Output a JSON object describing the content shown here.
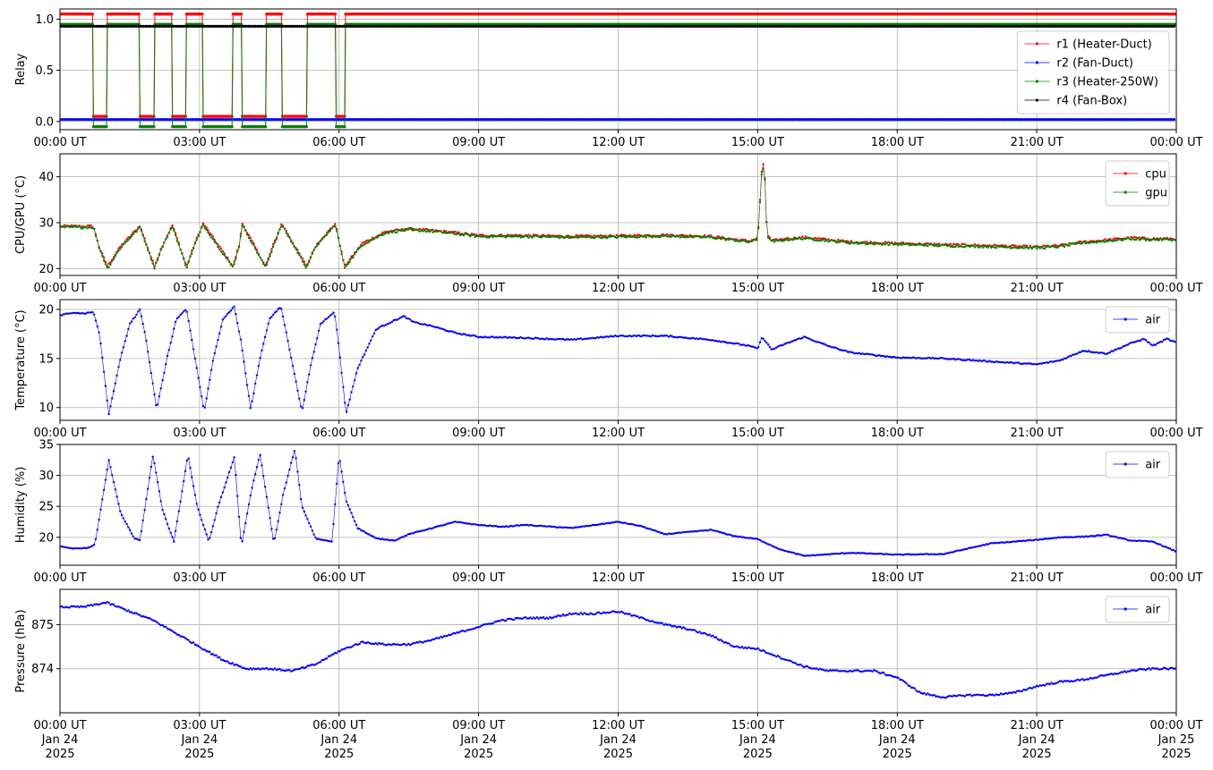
{
  "chart_data": [
    {
      "type": "line",
      "ylabel": "Relay",
      "xlim": [
        "2025-01-24T00:00Z",
        "2025-01-25T00:00Z"
      ],
      "ylim": [
        -0.08,
        1.1
      ],
      "yticks": [
        "0.0",
        "0.5",
        "1.0"
      ],
      "ytick_values": [
        0,
        0.5,
        1.0
      ],
      "xtick_labels": [
        "00:00 UT",
        "03:00 UT",
        "06:00 UT",
        "09:00 UT",
        "12:00 UT",
        "15:00 UT",
        "18:00 UT",
        "21:00 UT",
        "00:00 UT"
      ],
      "grid": true,
      "legend": "right",
      "series": [
        {
          "name": "r1 (Heater-Duct)",
          "color": "#ff0000",
          "style": "cycling-then-on",
          "on_level": 1.05,
          "off_level": 0.05,
          "cycles_hours": [
            [
              0.0,
              0.72
            ],
            [
              1.02,
              1.72
            ],
            [
              2.03,
              2.42
            ],
            [
              2.72,
              3.08
            ],
            [
              3.72,
              3.92
            ],
            [
              4.42,
              4.77
            ],
            [
              5.3,
              5.92
            ],
            [
              6.12,
              24.0
            ]
          ]
        },
        {
          "name": "r2 (Fan-Duct)",
          "color": "#0000ff",
          "style": "constant",
          "level": 0.02
        },
        {
          "name": "r3 (Heater-250W)",
          "color": "#008000",
          "style": "cycling-then-on",
          "on_level": 0.95,
          "off_level": -0.05,
          "cycles_hours": [
            [
              0.0,
              0.72
            ],
            [
              1.02,
              1.72
            ],
            [
              2.03,
              2.42
            ],
            [
              2.72,
              3.08
            ],
            [
              3.72,
              3.92
            ],
            [
              4.42,
              4.77
            ],
            [
              5.3,
              5.92
            ],
            [
              6.12,
              24.0
            ]
          ]
        },
        {
          "name": "r4 (Fan-Box)",
          "color": "#000000",
          "style": "constant",
          "level": 0.93
        }
      ]
    },
    {
      "type": "line",
      "ylabel": "CPU/GPU (°C)",
      "xlim": [
        "2025-01-24T00:00Z",
        "2025-01-25T00:00Z"
      ],
      "ylim": [
        18.5,
        45
      ],
      "yticks": [
        "20",
        "30",
        "40"
      ],
      "ytick_values": [
        20,
        30,
        40
      ],
      "xtick_labels": [
        "00:00 UT",
        "03:00 UT",
        "06:00 UT",
        "09:00 UT",
        "12:00 UT",
        "15:00 UT",
        "18:00 UT",
        "21:00 UT",
        "00:00 UT"
      ],
      "grid": true,
      "legend": "upper right",
      "series": [
        {
          "name": "cpu",
          "color": "#ff0000",
          "x_hours": [
            0,
            0.72,
            0.85,
            1.02,
            1.3,
            1.72,
            2.03,
            2.2,
            2.42,
            2.72,
            2.9,
            3.08,
            3.72,
            3.85,
            3.92,
            4.42,
            4.6,
            4.77,
            5.3,
            5.5,
            5.92,
            6.12,
            6.5,
            7.0,
            7.5,
            8.0,
            8.5,
            9.0,
            10.0,
            11.0,
            12.0,
            13.0,
            14.0,
            14.8,
            15.0,
            15.1,
            15.15,
            15.2,
            15.3,
            15.6,
            16.0,
            17.0,
            18.0,
            19.0,
            20.0,
            21.0,
            21.5,
            22.0,
            22.5,
            23.0,
            23.5,
            24.0
          ],
          "values": [
            29.2,
            29.2,
            24.5,
            20.5,
            24.8,
            29.3,
            20.5,
            25.0,
            29.5,
            20.5,
            25.5,
            29.8,
            20.5,
            25.0,
            29.8,
            20.5,
            25.5,
            29.8,
            20.5,
            25.0,
            29.8,
            20.5,
            25.5,
            28.0,
            28.6,
            28.3,
            27.8,
            27.2,
            27.2,
            27.0,
            27.1,
            27.3,
            27.0,
            26.0,
            26.5,
            43.5,
            41.0,
            27.5,
            26.0,
            26.5,
            26.8,
            25.8,
            25.5,
            25.2,
            25.0,
            24.7,
            25.0,
            25.8,
            26.2,
            26.7,
            26.5,
            26.5
          ]
        },
        {
          "name": "gpu",
          "color": "#008000",
          "x_hours": [
            0,
            0.72,
            0.85,
            1.02,
            1.3,
            1.72,
            2.03,
            2.2,
            2.42,
            2.72,
            2.9,
            3.08,
            3.72,
            3.85,
            3.92,
            4.42,
            4.6,
            4.77,
            5.3,
            5.5,
            5.92,
            6.12,
            6.5,
            7.0,
            7.5,
            8.0,
            8.5,
            9.0,
            10.0,
            11.0,
            12.0,
            13.0,
            14.0,
            14.8,
            15.0,
            15.1,
            15.15,
            15.2,
            15.3,
            15.6,
            16.0,
            17.0,
            18.0,
            19.0,
            20.0,
            21.0,
            21.5,
            22.0,
            22.5,
            23.0,
            23.5,
            24.0
          ],
          "values": [
            29.0,
            29.0,
            24.3,
            20.0,
            24.5,
            29.0,
            20.2,
            24.8,
            29.2,
            20.2,
            25.2,
            29.5,
            20.2,
            24.8,
            29.5,
            20.2,
            25.2,
            29.5,
            20.2,
            24.8,
            29.5,
            20.2,
            25.2,
            27.8,
            28.5,
            28.1,
            27.6,
            27.0,
            27.0,
            26.8,
            26.9,
            27.1,
            26.8,
            25.8,
            26.3,
            43.0,
            40.5,
            27.3,
            25.8,
            26.3,
            26.6,
            25.6,
            25.3,
            25.0,
            24.8,
            24.5,
            24.8,
            25.6,
            26.0,
            26.5,
            26.3,
            26.3
          ]
        }
      ]
    },
    {
      "type": "line",
      "ylabel": "Temperature (°C)",
      "xlim": [
        "2025-01-24T00:00Z",
        "2025-01-25T00:00Z"
      ],
      "ylim": [
        8.7,
        21
      ],
      "yticks": [
        "10",
        "15",
        "20"
      ],
      "ytick_values": [
        10,
        15,
        20
      ],
      "xtick_labels": [
        "00:00 UT",
        "03:00 UT",
        "06:00 UT",
        "09:00 UT",
        "12:00 UT",
        "15:00 UT",
        "18:00 UT",
        "21:00 UT",
        "00:00 UT"
      ],
      "grid": true,
      "legend": "upper right",
      "series": [
        {
          "name": "air",
          "color": "#0000ff",
          "x_hours": [
            0,
            0.2,
            0.5,
            0.72,
            0.85,
            1.05,
            1.3,
            1.5,
            1.72,
            1.85,
            2.08,
            2.3,
            2.5,
            2.72,
            2.85,
            3.1,
            3.3,
            3.5,
            3.75,
            3.9,
            4.1,
            4.3,
            4.5,
            4.75,
            4.9,
            5.2,
            5.4,
            5.6,
            5.9,
            6.0,
            6.15,
            6.4,
            6.8,
            7.2,
            7.4,
            7.6,
            8.0,
            8.5,
            9.0,
            10.0,
            11.0,
            12.0,
            13.0,
            14.0,
            14.8,
            15.0,
            15.1,
            15.3,
            15.6,
            16.0,
            16.5,
            17.0,
            18.0,
            19.0,
            20.0,
            21.0,
            21.5,
            22.0,
            22.5,
            23.0,
            23.3,
            23.5,
            23.8,
            24.0
          ],
          "values": [
            19.4,
            19.6,
            19.6,
            19.7,
            17.5,
            9.3,
            15.0,
            18.5,
            20.0,
            17.0,
            9.8,
            15.0,
            19.0,
            20.0,
            16.5,
            9.6,
            15.0,
            19.0,
            20.3,
            16.5,
            9.8,
            15.0,
            19.0,
            20.3,
            16.8,
            9.6,
            14.5,
            18.5,
            19.8,
            16.0,
            9.4,
            14.0,
            18.0,
            18.9,
            19.3,
            18.7,
            18.3,
            17.6,
            17.2,
            17.1,
            16.9,
            17.3,
            17.3,
            16.9,
            16.3,
            16.0,
            17.2,
            15.9,
            16.5,
            17.2,
            16.3,
            15.6,
            15.1,
            15.0,
            14.7,
            14.4,
            14.8,
            15.8,
            15.5,
            16.5,
            17.0,
            16.3,
            17.0,
            16.6
          ]
        }
      ]
    },
    {
      "type": "line",
      "ylabel": "Humidity (%)",
      "xlim": [
        "2025-01-24T00:00Z",
        "2025-01-25T00:00Z"
      ],
      "ylim": [
        15.5,
        35
      ],
      "yticks": [
        "20",
        "25",
        "30",
        "35"
      ],
      "ytick_values": [
        20,
        25,
        30,
        35
      ],
      "xtick_labels": [
        "00:00 UT",
        "03:00 UT",
        "06:00 UT",
        "09:00 UT",
        "12:00 UT",
        "15:00 UT",
        "18:00 UT",
        "21:00 UT",
        "00:00 UT"
      ],
      "grid": true,
      "legend": "upper right",
      "series": [
        {
          "name": "air",
          "color": "#0000ff",
          "x_hours": [
            0,
            0.3,
            0.6,
            0.75,
            1.05,
            1.3,
            1.6,
            1.72,
            2.0,
            2.2,
            2.45,
            2.75,
            2.95,
            3.2,
            3.4,
            3.75,
            3.9,
            4.1,
            4.3,
            4.6,
            4.8,
            5.05,
            5.2,
            5.5,
            5.85,
            6.0,
            6.15,
            6.4,
            6.8,
            7.2,
            7.5,
            8.0,
            8.5,
            9.0,
            9.5,
            10.0,
            11.0,
            12.0,
            12.5,
            13.0,
            14.0,
            14.5,
            15.0,
            15.5,
            16.0,
            17.0,
            18.0,
            19.0,
            20.0,
            21.0,
            21.5,
            22.0,
            22.5,
            23.0,
            23.5,
            24.0
          ],
          "values": [
            18.5,
            18.2,
            18.3,
            18.8,
            32.5,
            24.0,
            19.8,
            19.5,
            33.3,
            24.5,
            19.3,
            33.3,
            25.0,
            19.3,
            25.0,
            33.0,
            18.5,
            27.0,
            33.5,
            19.0,
            27.0,
            34.3,
            25.0,
            19.8,
            19.3,
            33.3,
            26.0,
            21.5,
            19.8,
            19.5,
            20.5,
            21.5,
            22.5,
            22.0,
            21.7,
            22.0,
            21.5,
            22.5,
            21.8,
            20.5,
            21.2,
            20.2,
            19.7,
            18.0,
            17.0,
            17.5,
            17.2,
            17.3,
            19.0,
            19.6,
            20.0,
            20.1,
            20.4,
            19.5,
            19.3,
            17.7
          ]
        }
      ]
    },
    {
      "type": "line",
      "ylabel": "Pressure (hPa)",
      "xlim": [
        "2025-01-24T00:00Z",
        "2025-01-25T00:00Z"
      ],
      "ylim": [
        873.0,
        875.8
      ],
      "yticks": [
        "874",
        "875"
      ],
      "ytick_values": [
        874,
        875
      ],
      "xtick_labels": [
        "00:00 UT",
        "03:00 UT",
        "06:00 UT",
        "09:00 UT",
        "12:00 UT",
        "15:00 UT",
        "18:00 UT",
        "21:00 UT",
        "00:00 UT"
      ],
      "xtick_date_labels": [
        "Jan 24",
        "Jan 24",
        "Jan 24",
        "Jan 24",
        "Jan 24",
        "Jan 24",
        "Jan 24",
        "Jan 24",
        "Jan 25"
      ],
      "xtick_year_labels": [
        "2025",
        "2025",
        "2025",
        "2025",
        "2025",
        "2025",
        "2025",
        "2025",
        "2025"
      ],
      "grid": true,
      "legend": "upper right",
      "series": [
        {
          "name": "air",
          "color": "#0000ff",
          "x_hours": [
            0,
            0.5,
            1.0,
            1.5,
            2.0,
            2.5,
            3.0,
            3.5,
            4.0,
            4.5,
            5.0,
            5.5,
            6.0,
            6.5,
            7.0,
            7.5,
            8.0,
            8.5,
            9.0,
            9.5,
            10.0,
            10.5,
            11.0,
            11.5,
            12.0,
            12.5,
            13.0,
            13.5,
            14.0,
            14.5,
            15.0,
            15.5,
            16.0,
            16.5,
            17.0,
            17.5,
            18.0,
            18.5,
            19.0,
            19.5,
            20.0,
            20.5,
            21.0,
            21.5,
            22.0,
            22.5,
            23.0,
            23.5,
            24.0
          ],
          "values": [
            875.4,
            875.4,
            875.5,
            875.3,
            875.1,
            874.8,
            874.5,
            874.2,
            874.0,
            874.0,
            873.95,
            874.1,
            874.4,
            874.6,
            874.55,
            874.55,
            874.65,
            874.8,
            874.95,
            875.1,
            875.15,
            875.15,
            875.25,
            875.25,
            875.3,
            875.15,
            875.0,
            874.9,
            874.75,
            874.5,
            874.45,
            874.25,
            874.05,
            873.95,
            873.95,
            873.95,
            873.8,
            873.45,
            873.35,
            873.4,
            873.4,
            873.45,
            873.6,
            873.7,
            873.75,
            873.85,
            873.95,
            874.0,
            874.0
          ]
        }
      ]
    }
  ]
}
